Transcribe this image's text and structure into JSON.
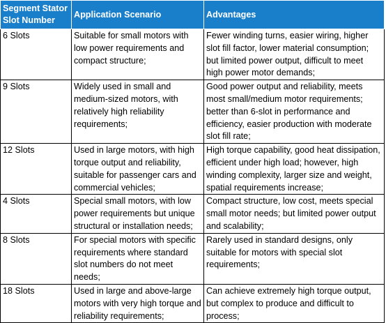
{
  "table": {
    "headers": {
      "slot_number": "Segment Stator Slot Number",
      "application": "Application Scenario",
      "advantages": "Advantages"
    },
    "rows": [
      {
        "slots": "6 Slots",
        "application": "Suitable for small motors with low power requirements and compact structure;",
        "advantages": "Fewer winding turns, easier wiring, higher slot fill factor, lower material consumption; but limited power output, difficult to meet high power motor demands;"
      },
      {
        "slots": "9 Slots",
        "application": "Widely used in small and medium-sized motors, with relatively high reliability requirements;",
        "advantages": "Good power output and reliability, meets most small/medium motor requirements; better than 6-slot in performance and efficiency, easier production with moderate slot fill rate;"
      },
      {
        "slots": "12 Slots",
        "application": "Used in large motors, with high torque output and reliability, suitable for passenger cars and commercial vehicles;",
        "advantages": "High torque capability, good heat dissipation, efficient under high load; however, high winding complexity, larger size and weight, spatial requirements increase;"
      },
      {
        "slots": "4 Slots",
        "application": "Special small motors, with low power requirements but unique structural or installation needs;",
        "advantages": "Compact structure, low cost, meets special small motor needs; but limited power output and scalability;"
      },
      {
        "slots": "8 Slots",
        "application": "For special motors with specific requirements where standard slot numbers do not meet needs;",
        "advantages": "Rarely used in standard designs, only suitable for motors with special slot requirements;"
      },
      {
        "slots": "18 Slots",
        "application": "Used in large and above-large motors with very high torque and reliability requirements;",
        "advantages": "Can achieve extremely high torque output, but complex to produce and difficult to process;"
      }
    ]
  }
}
